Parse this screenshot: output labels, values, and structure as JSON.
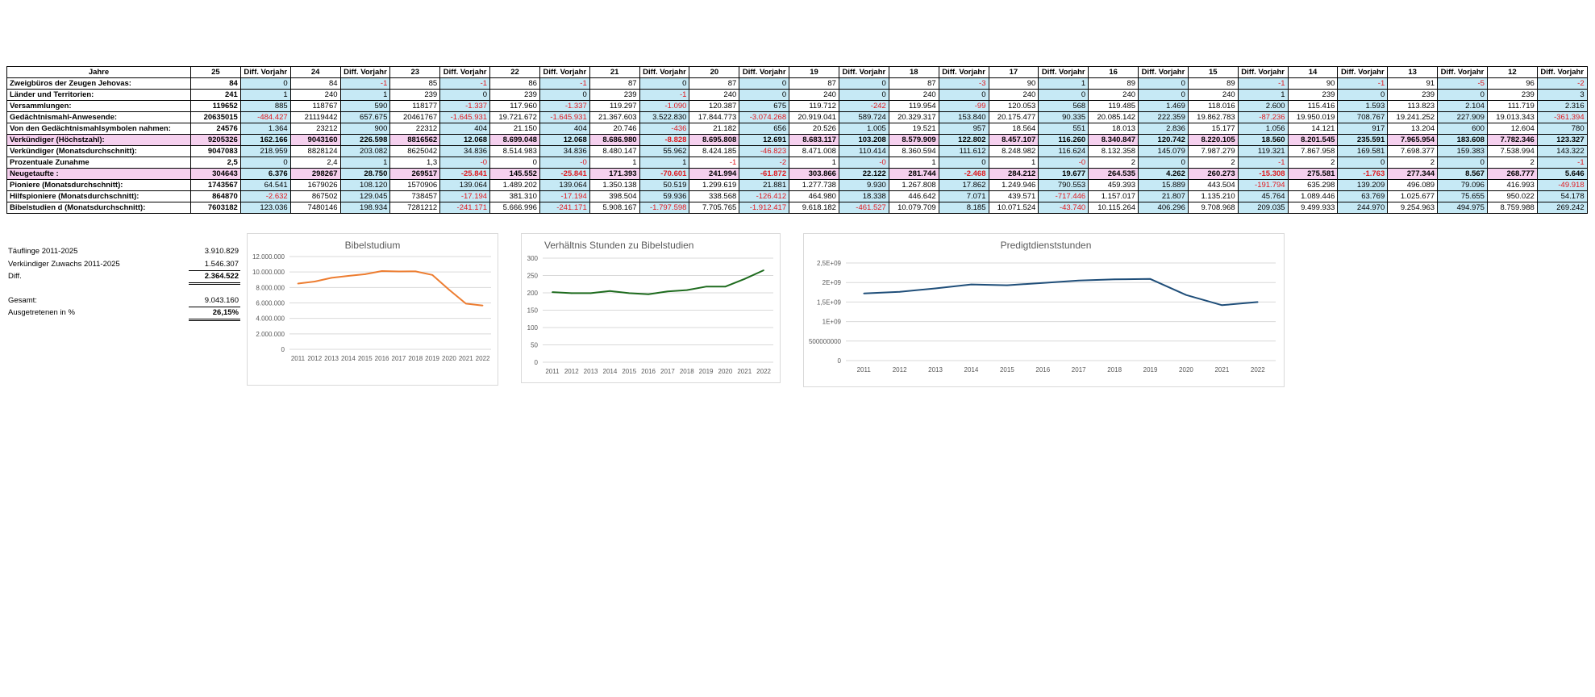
{
  "table": {
    "first_header": "Jahre",
    "columns": [
      "25",
      "Diff. Vorjahr",
      "24",
      "Diff. Vorjahr",
      "23",
      "Diff. Vorjahr",
      "22",
      "Diff. Vorjahr",
      "21",
      "Diff. Vorjahr",
      "20",
      "Diff. Vorjahr",
      "19",
      "Diff. Vorjahr",
      "18",
      "Diff. Vorjahr",
      "17",
      "Diff. Vorjahr",
      "16",
      "Diff. Vorjahr",
      "15",
      "Diff. Vorjahr",
      "14",
      "Diff. Vorjahr",
      "13",
      "Diff. Vorjahr",
      "12",
      "Diff. Vorjahr"
    ],
    "rows": [
      {
        "label": "Zweigbüros der Zeugen Jehovas:",
        "highlight": false,
        "values": [
          "84",
          "0",
          "84",
          "-1",
          "85",
          "-1",
          "86",
          "-1",
          "87",
          "0",
          "87",
          "0",
          "87",
          "0",
          "87",
          "-3",
          "90",
          "1",
          "89",
          "0",
          "89",
          "-1",
          "90",
          "-1",
          "91",
          "-5",
          "96",
          "-2"
        ]
      },
      {
        "label": "Länder und Territorien:",
        "highlight": false,
        "values": [
          "241",
          "1",
          "240",
          "1",
          "239",
          "0",
          "239",
          "0",
          "239",
          "-1",
          "240",
          "0",
          "240",
          "0",
          "240",
          "0",
          "240",
          "0",
          "240",
          "0",
          "240",
          "1",
          "239",
          "0",
          "239",
          "0",
          "239",
          "3"
        ]
      },
      {
        "label": "Versammlungen:",
        "highlight": false,
        "values": [
          "119652",
          "885",
          "118767",
          "590",
          "118177",
          "-1.337",
          "117.960",
          "-1.337",
          "119.297",
          "-1.090",
          "120.387",
          "675",
          "119.712",
          "-242",
          "119.954",
          "-99",
          "120.053",
          "568",
          "119.485",
          "1.469",
          "118.016",
          "2.600",
          "115.416",
          "1.593",
          "113.823",
          "2.104",
          "111.719",
          "2.316"
        ]
      },
      {
        "label": "Gedächtnismahl-Anwesende:",
        "highlight": false,
        "values": [
          "20635015",
          "-484.427",
          "21119442",
          "657.675",
          "20461767",
          "-1.645.931",
          "19.721.672",
          "-1.645.931",
          "21.367.603",
          "3.522.830",
          "17.844.773",
          "-3.074.268",
          "20.919.041",
          "589.724",
          "20.329.317",
          "153.840",
          "20.175.477",
          "90.335",
          "20.085.142",
          "222.359",
          "19.862.783",
          "-87.236",
          "19.950.019",
          "708.767",
          "19.241.252",
          "227.909",
          "19.013.343",
          "-361.394"
        ]
      },
      {
        "label": "Von den Gedächtnismahlsymbolen nahmen:",
        "highlight": false,
        "values": [
          "24576",
          "1.364",
          "23212",
          "900",
          "22312",
          "404",
          "21.150",
          "404",
          "20.746",
          "-436",
          "21.182",
          "656",
          "20.526",
          "1.005",
          "19.521",
          "957",
          "18.564",
          "551",
          "18.013",
          "2.836",
          "15.177",
          "1.056",
          "14.121",
          "917",
          "13.204",
          "600",
          "12.604",
          "780"
        ]
      },
      {
        "label": "Verkündiger (Höchstzahl):",
        "highlight": true,
        "values": [
          "9205326",
          "162.166",
          "9043160",
          "226.598",
          "8816562",
          "12.068",
          "8.699.048",
          "12.068",
          "8.686.980",
          "-8.828",
          "8.695.808",
          "12.691",
          "8.683.117",
          "103.208",
          "8.579.909",
          "122.802",
          "8.457.107",
          "116.260",
          "8.340.847",
          "120.742",
          "8.220.105",
          "18.560",
          "8.201.545",
          "235.591",
          "7.965.954",
          "183.608",
          "7.782.346",
          "123.327"
        ]
      },
      {
        "label": "Verkündiger (Monatsdurchschnitt):",
        "highlight": false,
        "values": [
          "9047083",
          "218.959",
          "8828124",
          "203.082",
          "8625042",
          "34.836",
          "8.514.983",
          "34.836",
          "8.480.147",
          "55.962",
          "8.424.185",
          "-46.823",
          "8.471.008",
          "110.414",
          "8.360.594",
          "111.612",
          "8.248.982",
          "116.624",
          "8.132.358",
          "145.079",
          "7.987.279",
          "119.321",
          "7.867.958",
          "169.581",
          "7.698.377",
          "159.383",
          "7.538.994",
          "143.322"
        ]
      },
      {
        "label": "Prozentuale Zunahme",
        "highlight": false,
        "values": [
          "2,5",
          "0",
          "2,4",
          "1",
          "1,3",
          "-0",
          "0",
          "-0",
          "1",
          "1",
          "-1",
          "-2",
          "1",
          "-0",
          "1",
          "0",
          "1",
          "-0",
          "2",
          "0",
          "2",
          "-1",
          "2",
          "0",
          "2",
          "0",
          "2",
          "-1"
        ]
      },
      {
        "label": "Neugetaufte :",
        "highlight": true,
        "values": [
          "304643",
          "6.376",
          "298267",
          "28.750",
          "269517",
          "-25.841",
          "145.552",
          "-25.841",
          "171.393",
          "-70.601",
          "241.994",
          "-61.872",
          "303.866",
          "22.122",
          "281.744",
          "-2.468",
          "284.212",
          "19.677",
          "264.535",
          "4.262",
          "260.273",
          "-15.308",
          "275.581",
          "-1.763",
          "277.344",
          "8.567",
          "268.777",
          "5.646"
        ]
      },
      {
        "label": "Pioniere (Monatsdurchschnitt):",
        "highlight": false,
        "values": [
          "1743567",
          "64.541",
          "1679026",
          "108.120",
          "1570906",
          "139.064",
          "1.489.202",
          "139.064",
          "1.350.138",
          "50.519",
          "1.299.619",
          "21.881",
          "1.277.738",
          "9.930",
          "1.267.808",
          "17.862",
          "1.249.946",
          "790.553",
          "459.393",
          "15.889",
          "443.504",
          "-191.794",
          "635.298",
          "139.209",
          "496.089",
          "79.096",
          "416.993",
          "-49.918"
        ]
      },
      {
        "label": "Hilfspioniere (Monatsdurchschnitt):",
        "highlight": false,
        "values": [
          "864870",
          "-2.632",
          "867502",
          "129.045",
          "738457",
          "-17.194",
          "381.310",
          "-17.194",
          "398.504",
          "59.936",
          "338.568",
          "-126.412",
          "464.980",
          "18.338",
          "446.642",
          "7.071",
          "439.571",
          "-717.446",
          "1.157.017",
          "21.807",
          "1.135.210",
          "45.764",
          "1.089.446",
          "63.769",
          "1.025.677",
          "75.655",
          "950.022",
          "54.178"
        ]
      },
      {
        "label": "Bibelstudien d (Monatsdurchschnitt):",
        "highlight": false,
        "values": [
          "7603182",
          "123.036",
          "7480146",
          "198.934",
          "7281212",
          "-241.171",
          "5.666.996",
          "-241.171",
          "5.908.167",
          "-1.797.598",
          "7.705.765",
          "-1.912.417",
          "9.618.182",
          "-461.527",
          "10.079.709",
          "8.185",
          "10.071.524",
          "-43.740",
          "10.115.264",
          "406.296",
          "9.708.968",
          "209.035",
          "9.499.933",
          "244.970",
          "9.254.963",
          "494.975",
          "8.759.988",
          "269.242"
        ]
      }
    ]
  },
  "stats": {
    "rows": [
      {
        "label": "Täuflinge  2011-2025",
        "value": "3.910.829",
        "style": "plain"
      },
      {
        "label": "Verkündiger Zuwachs 2011-2025",
        "value": "1.546.307",
        "style": "under"
      },
      {
        "label": "Diff.",
        "value": "2.364.522",
        "style": "double"
      },
      {
        "label": "",
        "value": "",
        "style": "plain"
      },
      {
        "label": "Gesamt:",
        "value": "9.043.160",
        "style": "under"
      },
      {
        "label": "Ausgetretenen in %",
        "value": "26,15%",
        "style": "double"
      }
    ]
  },
  "charts": [
    {
      "title": "Bibelstudium",
      "type": "line",
      "color": "#ed7d31",
      "x": [
        "2011",
        "2012",
        "2013",
        "2014",
        "2015",
        "2016",
        "2017",
        "2018",
        "2019",
        "2020",
        "2021",
        "2022"
      ],
      "values": [
        8500000,
        8760000,
        9250000,
        9500000,
        9710000,
        10120000,
        10070000,
        10080000,
        9620000,
        7710000,
        5910000,
        5670000
      ],
      "ylim": [
        0,
        12000000
      ],
      "y_ticks": [
        "0",
        "2.000.000",
        "4.000.000",
        "6.000.000",
        "8.000.000",
        "10.000.000",
        "12.000.000"
      ],
      "grid": true
    },
    {
      "title": "Verhältnis Stunden zu Bibelstudien",
      "type": "line",
      "color": "#1e6b1e",
      "x": [
        "2011",
        "2012",
        "2013",
        "2014",
        "2015",
        "2016",
        "2017",
        "2018",
        "2019",
        "2020",
        "2021",
        "2022"
      ],
      "values": [
        202,
        199,
        199,
        205,
        199,
        196,
        204,
        208,
        218,
        218,
        240,
        265
      ],
      "ylim": [
        0,
        300
      ],
      "y_ticks": [
        "0",
        "50",
        "100",
        "150",
        "200",
        "250",
        "300"
      ],
      "grid": true
    },
    {
      "title": "Predigtdienststunden",
      "type": "line",
      "color": "#1f4e79",
      "x": [
        "2011",
        "2012",
        "2013",
        "2014",
        "2015",
        "2016",
        "2017",
        "2018",
        "2019",
        "2020",
        "2021",
        "2022"
      ],
      "values": [
        1720000000,
        1760000000,
        1850000000,
        1950000000,
        1930000000,
        1990000000,
        2050000000,
        2080000000,
        2090000000,
        1680000000,
        1420000000,
        1500000000
      ],
      "ylim": [
        0,
        2500000000
      ],
      "y_ticks": [
        "0",
        "500000000",
        "1E+09",
        "1,5E+09",
        "2E+09",
        "2,5E+09"
      ],
      "grid": true
    }
  ]
}
